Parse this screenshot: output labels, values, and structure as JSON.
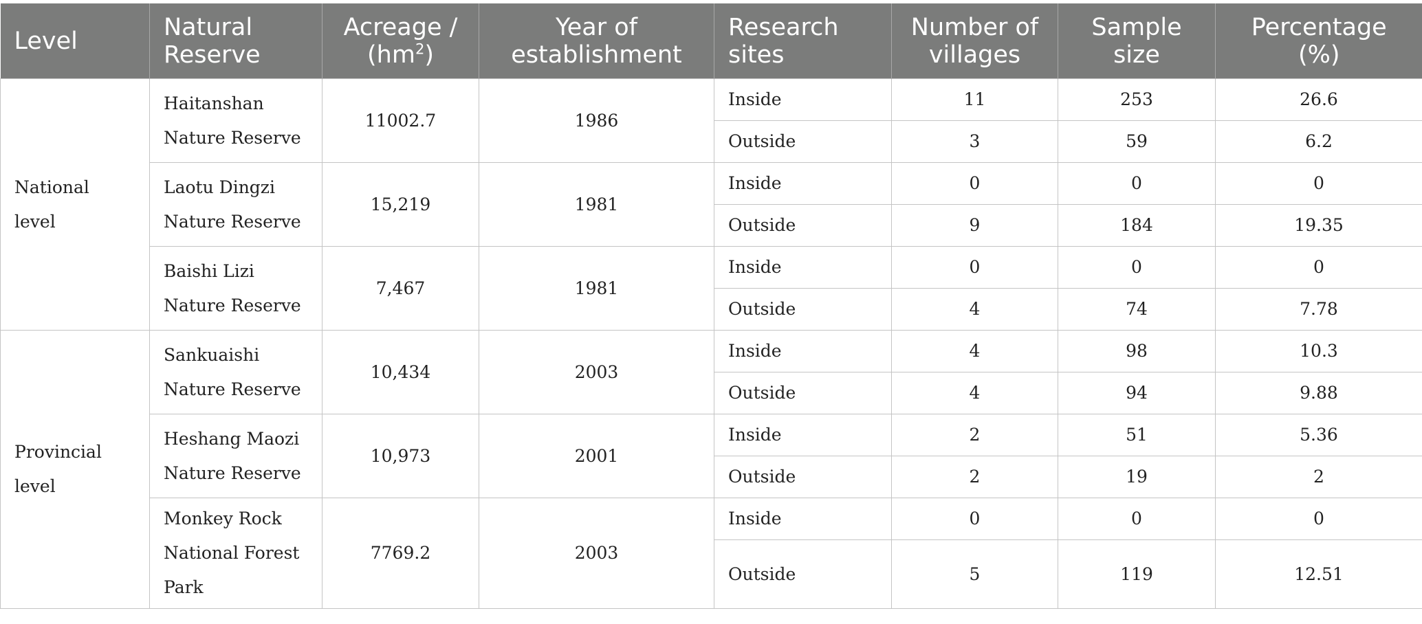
{
  "headers": {
    "level": "Level",
    "reserve": "Natural Reserve",
    "acreage": "Acreage / (hm",
    "acreage_sup": "2",
    "acreage_end": ")",
    "year": "Year of establishment",
    "sites": "Research sites",
    "villages": "Number of villages",
    "sample": "Sample size",
    "pct": "Percentage (%)"
  },
  "levels": [
    "National level",
    "Provincial level"
  ],
  "reserves": [
    {
      "name": "Haitanshan Nature Reserve",
      "acreage": "11002.7",
      "year": "1986"
    },
    {
      "name": "Laotu Dingzi Nature Reserve",
      "acreage": "15,219",
      "year": "1981"
    },
    {
      "name": "Baishi Lizi Nature Reserve",
      "acreage": "7,467",
      "year": "1981"
    },
    {
      "name": "Sankuaishi Nature Reserve",
      "acreage": "10,434",
      "year": "2003"
    },
    {
      "name": "Heshang Maozi Nature Reserve",
      "acreage": "10,973",
      "year": "2001"
    },
    {
      "name": "Monkey Rock National Forest Park",
      "acreage": "7769.2",
      "year": "2003"
    }
  ],
  "rows": [
    {
      "site": "Inside",
      "villages": "11",
      "sample": "253",
      "pct": "26.6"
    },
    {
      "site": "Outside",
      "villages": "3",
      "sample": "59",
      "pct": "6.2"
    },
    {
      "site": "Inside",
      "villages": "0",
      "sample": "0",
      "pct": "0"
    },
    {
      "site": "Outside",
      "villages": "9",
      "sample": "184",
      "pct": "19.35"
    },
    {
      "site": "Inside",
      "villages": "0",
      "sample": "0",
      "pct": "0"
    },
    {
      "site": "Outside",
      "villages": "4",
      "sample": "74",
      "pct": "7.78"
    },
    {
      "site": "Inside",
      "villages": "4",
      "sample": "98",
      "pct": "10.3"
    },
    {
      "site": "Outside",
      "villages": "4",
      "sample": "94",
      "pct": "9.88"
    },
    {
      "site": "Inside",
      "villages": "2",
      "sample": "51",
      "pct": "5.36"
    },
    {
      "site": "Outside",
      "villages": "2",
      "sample": "19",
      "pct": "2"
    },
    {
      "site": "Inside",
      "villages": "0",
      "sample": "0",
      "pct": "0"
    },
    {
      "site": "Outside",
      "villages": "5",
      "sample": "119",
      "pct": "12.51"
    }
  ]
}
